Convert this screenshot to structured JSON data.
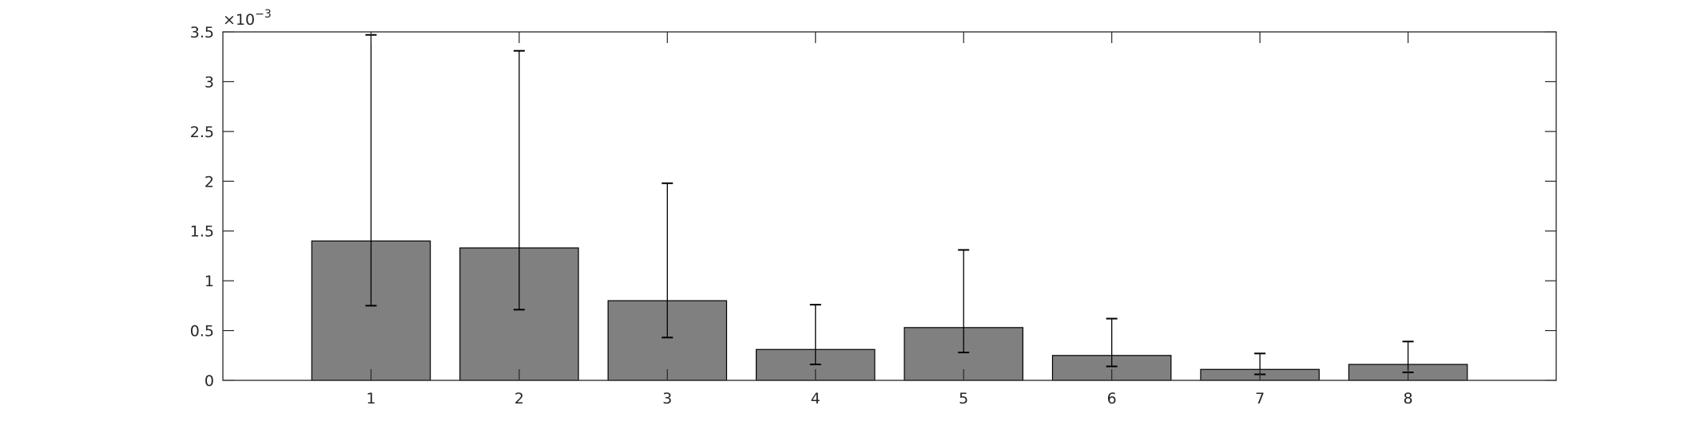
{
  "chart_data": {
    "type": "bar",
    "categories": [
      "1",
      "2",
      "3",
      "4",
      "5",
      "6",
      "7",
      "8"
    ],
    "values": [
      0.0014,
      0.00133,
      0.0008,
      0.00031,
      0.00053,
      0.00025,
      0.00011,
      0.00016
    ],
    "error_low": [
      0.00075,
      0.00071,
      0.00043,
      0.00016,
      0.00028,
      0.00014,
      6e-05,
      8e-05
    ],
    "error_high": [
      0.00347,
      0.00331,
      0.00198,
      0.00076,
      0.00131,
      0.00062,
      0.00027,
      0.00039
    ],
    "ylim": [
      0,
      0.0035
    ],
    "xlim": [
      0,
      9
    ],
    "yticks": [
      0,
      0.0005,
      0.001,
      0.0015,
      0.002,
      0.0025,
      0.003,
      0.0035
    ],
    "ytick_labels": [
      "0",
      "0.5",
      "1",
      "1.5",
      "2",
      "2.5",
      "3",
      "3.5"
    ],
    "y_exponent_label": "×10",
    "y_exponent": "−3",
    "bar_color": "#808080",
    "edge_color": "#000000",
    "axis_color": "#262626",
    "grid": false,
    "title": "",
    "xlabel": "",
    "ylabel": ""
  }
}
